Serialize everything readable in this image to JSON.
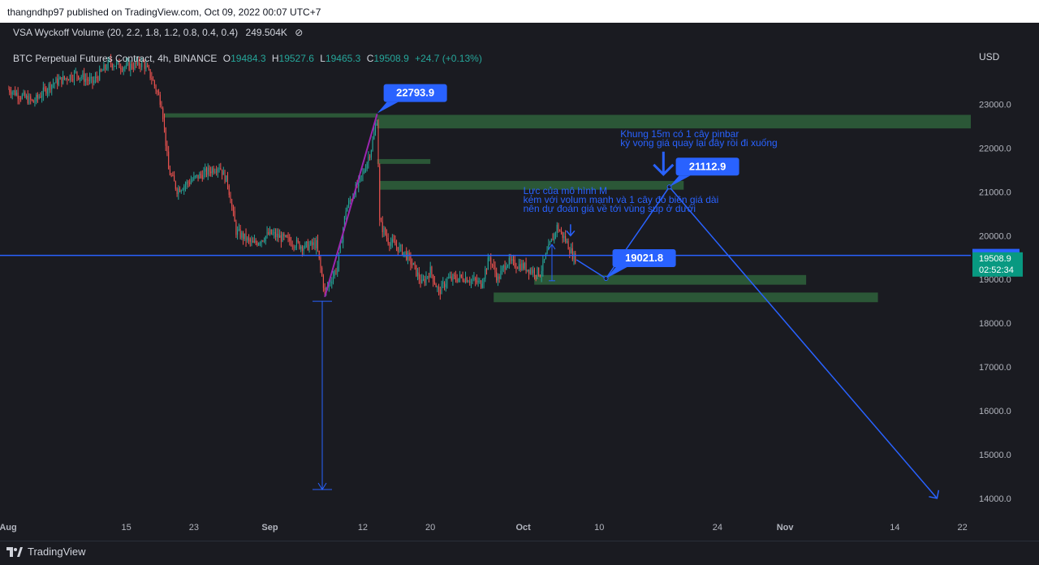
{
  "header": {
    "published": "thangndhp97 published on TradingView.com, Oct 09, 2022 00:07 UTC+7"
  },
  "indicator": {
    "label": "VSA Wyckoff Volume (20, 2.2, 1.8, 1.2, 0.8, 0.4, 0.4)",
    "value": "249.504K",
    "icon": "eye-off-icon"
  },
  "legend": {
    "symbol": "BTC Perpetual Futures Contract, 4h, BINANCE",
    "o_label": "O",
    "o_value": "19484.3",
    "h_label": "H",
    "h_value": "19527.6",
    "l_label": "L",
    "l_value": "19465.3",
    "c_label": "C",
    "c_value": "19508.9",
    "change": "+24.7 (+0.13%)"
  },
  "footer": {
    "brand": "TradingView"
  },
  "chart_data": {
    "type": "candlestick",
    "currency": "USD",
    "ylim": [
      13700,
      23900
    ],
    "y_ticks": [
      {
        "label": "23000.0",
        "v": 23000
      },
      {
        "label": "22000.0",
        "v": 22000
      },
      {
        "label": "21000.0",
        "v": 21000
      },
      {
        "label": "20000.0",
        "v": 20000
      },
      {
        "label": "19000.0",
        "v": 19000
      },
      {
        "label": "18000.0",
        "v": 18000
      },
      {
        "label": "17000.0",
        "v": 17000
      },
      {
        "label": "16000.0",
        "v": 16000
      },
      {
        "label": "15000.0",
        "v": 15000
      },
      {
        "label": "14000.0",
        "v": 14000
      }
    ],
    "x_range": [
      0,
      114
    ],
    "x_ticks": [
      {
        "label": "Aug",
        "d": 0,
        "bold": true
      },
      {
        "label": "15",
        "d": 14
      },
      {
        "label": "23",
        "d": 22
      },
      {
        "label": "Sep",
        "d": 31,
        "bold": true
      },
      {
        "label": "12",
        "d": 42
      },
      {
        "label": "20",
        "d": 50
      },
      {
        "label": "Oct",
        "d": 61,
        "bold": true
      },
      {
        "label": "10",
        "d": 70
      },
      {
        "label": "24",
        "d": 84
      },
      {
        "label": "Nov",
        "d": 92,
        "bold": true
      },
      {
        "label": "14",
        "d": 105
      },
      {
        "label": "22",
        "d": 113
      }
    ],
    "price_key": [
      {
        "d": 0,
        "p": 23350
      },
      {
        "d": 3,
        "p": 23050
      },
      {
        "d": 5,
        "p": 23450
      },
      {
        "d": 8,
        "p": 23700
      },
      {
        "d": 10,
        "p": 23500
      },
      {
        "d": 12,
        "p": 23950
      },
      {
        "d": 14,
        "p": 23850
      },
      {
        "d": 16,
        "p": 23950
      },
      {
        "d": 17,
        "p": 23600
      },
      {
        "d": 18.2,
        "p": 23000
      },
      {
        "d": 19,
        "p": 21500
      },
      {
        "d": 20,
        "p": 21050
      },
      {
        "d": 22,
        "p": 21300
      },
      {
        "d": 24,
        "p": 21500
      },
      {
        "d": 25,
        "p": 21600
      },
      {
        "d": 26,
        "p": 21200
      },
      {
        "d": 27,
        "p": 20100
      },
      {
        "d": 29,
        "p": 19800
      },
      {
        "d": 31,
        "p": 20050
      },
      {
        "d": 33,
        "p": 19900
      },
      {
        "d": 35,
        "p": 19750
      },
      {
        "d": 36.5,
        "p": 19800
      },
      {
        "d": 37.5,
        "p": 18700
      },
      {
        "d": 39,
        "p": 19300
      },
      {
        "d": 40,
        "p": 20600
      },
      {
        "d": 42,
        "p": 21400
      },
      {
        "d": 43,
        "p": 22000
      },
      {
        "d": 43.7,
        "p": 22700
      },
      {
        "d": 44,
        "p": 20300
      },
      {
        "d": 45,
        "p": 19900
      },
      {
        "d": 47,
        "p": 19600
      },
      {
        "d": 48,
        "p": 19300
      },
      {
        "d": 49,
        "p": 18900
      },
      {
        "d": 50,
        "p": 19200
      },
      {
        "d": 51,
        "p": 18700
      },
      {
        "d": 52,
        "p": 19000
      },
      {
        "d": 54,
        "p": 19050
      },
      {
        "d": 56,
        "p": 18900
      },
      {
        "d": 57,
        "p": 19500
      },
      {
        "d": 58,
        "p": 19000
      },
      {
        "d": 59,
        "p": 19400
      },
      {
        "d": 61,
        "p": 19300
      },
      {
        "d": 62,
        "p": 19200
      },
      {
        "d": 63,
        "p": 19150
      },
      {
        "d": 64,
        "p": 19700
      },
      {
        "d": 65,
        "p": 20200
      },
      {
        "d": 66,
        "p": 19900
      },
      {
        "d": 67,
        "p": 19500
      }
    ],
    "current_line": {
      "price": 19549.5,
      "label": "19549.5"
    },
    "current_price": {
      "label": "19508.9",
      "countdown": "02:52:34"
    },
    "zones": [
      {
        "d1": 18.5,
        "d2": 43.7,
        "p1": 22795,
        "p2": 22700
      },
      {
        "d1": 43.7,
        "d2": 114,
        "p1": 22760,
        "p2": 22450
      },
      {
        "d1": 43.7,
        "d2": 50,
        "p1": 21750,
        "p2": 21640
      },
      {
        "d1": 44,
        "d2": 80,
        "p1": 21250,
        "p2": 21050
      },
      {
        "d1": 62.3,
        "d2": 94.5,
        "p1": 19100,
        "p2": 18880
      },
      {
        "d1": 57.5,
        "d2": 103,
        "p1": 18700,
        "p2": 18480
      }
    ],
    "annotations": [
      {
        "label": "22793.9",
        "d": 43.7,
        "p": 22793.9
      },
      {
        "label": "21112.9",
        "d": 78.3,
        "p": 21112.9
      },
      {
        "label": "19021.8",
        "d": 70.8,
        "p": 19021.8
      }
    ],
    "text_notes": [
      {
        "lines": [
          "Khung 15m có 1 cây pinbar",
          "kỳ vọng giá quay lại đây rồi đi xuống"
        ],
        "d": 72.5,
        "p": 22250
      },
      {
        "lines": [
          "Lực của mô hình M",
          "kém với volum mạnh và 1 cây đỏ biên giá dài",
          "nên dự đoán giá về tới vùng sup ở dưới"
        ],
        "d": 61,
        "p": 20950
      }
    ],
    "path": [
      {
        "d": 67.3,
        "p": 19450
      },
      {
        "d": 70.8,
        "p": 19021.8
      },
      {
        "d": 78.3,
        "p": 21112.9
      },
      {
        "d": 110,
        "p": 14000
      }
    ],
    "measure": {
      "d": 37.2,
      "p1": 18500,
      "p2": 14200
    },
    "trend_line": {
      "d1": 37.5,
      "p1": 18600,
      "d2": 43.7,
      "p2": 22780
    }
  }
}
